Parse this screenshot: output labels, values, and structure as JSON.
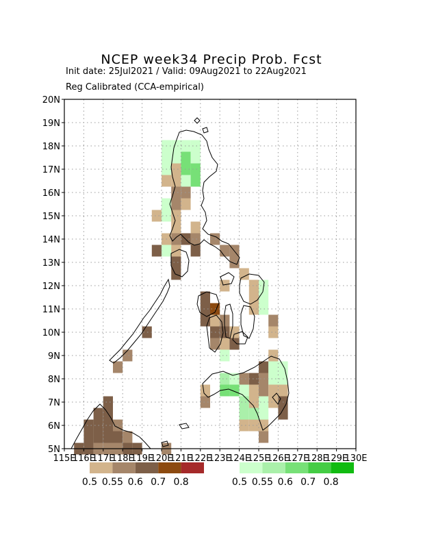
{
  "title": "NCEP week34 Precip Prob. Fcst",
  "subtitle_dates": "Init date: 25Jul2021 / Valid: 09Aug2021 to 22Aug2021",
  "subtitle_method": "Reg Calibrated (CCA-empirical)",
  "map": {
    "lon_range": [
      115,
      130
    ],
    "lat_range": [
      5,
      20
    ],
    "x_ticks": [
      "115E",
      "116E",
      "117E",
      "118E",
      "119E",
      "120E",
      "121E",
      "122E",
      "123E",
      "124E",
      "125E",
      "126E",
      "127E",
      "128E",
      "129E",
      "130E"
    ],
    "y_ticks": [
      "5N",
      "6N",
      "7N",
      "8N",
      "9N",
      "10N",
      "11N",
      "12N",
      "13N",
      "14N",
      "15N",
      "16N",
      "17N",
      "18N",
      "19N",
      "20N"
    ],
    "grid": true
  },
  "legend": {
    "dry": {
      "labels": [
        "0.5",
        "0.55",
        "0.6",
        "0.7",
        "0.8"
      ],
      "colors": [
        "#d2b48c",
        "#a5866a",
        "#7d5f48",
        "#8c4a10",
        "#a52a2a"
      ]
    },
    "wet": {
      "labels": [
        "0.5",
        "0.55",
        "0.6",
        "0.7",
        "0.8"
      ],
      "colors": [
        "#ccffcc",
        "#aaf0aa",
        "#77e077",
        "#44cc44",
        "#11bb11"
      ]
    },
    "class_colors": {
      "d1": "#d2b48c",
      "d2": "#a5866a",
      "d3": "#7d5f48",
      "d4": "#8c4a10",
      "w1": "#ccffcc",
      "w2": "#aaf0aa",
      "w3": "#77e077"
    }
  },
  "cells": [
    {
      "lon": 120.25,
      "lat": 18,
      "cls": "w1"
    },
    {
      "lon": 120.75,
      "lat": 18,
      "cls": "w1"
    },
    {
      "lon": 121.25,
      "lat": 18,
      "cls": "w1"
    },
    {
      "lon": 121.75,
      "lat": 18,
      "cls": "w1"
    },
    {
      "lon": 120.25,
      "lat": 17.5,
      "cls": "w1"
    },
    {
      "lon": 120.75,
      "lat": 17.5,
      "cls": "w1"
    },
    {
      "lon": 121.25,
      "lat": 17.5,
      "cls": "w3"
    },
    {
      "lon": 121.75,
      "lat": 17.5,
      "cls": "w1"
    },
    {
      "lon": 120.25,
      "lat": 17,
      "cls": "w1"
    },
    {
      "lon": 120.75,
      "lat": 17,
      "cls": "d1"
    },
    {
      "lon": 121.25,
      "lat": 17,
      "cls": "w3"
    },
    {
      "lon": 121.75,
      "lat": 17,
      "cls": "w3"
    },
    {
      "lon": 120.25,
      "lat": 16.5,
      "cls": "d1"
    },
    {
      "lon": 120.75,
      "lat": 16.5,
      "cls": "d1"
    },
    {
      "lon": 121.25,
      "lat": 16.5,
      "cls": "w1"
    },
    {
      "lon": 121.75,
      "lat": 16.5,
      "cls": "w3"
    },
    {
      "lon": 120.75,
      "lat": 16,
      "cls": "d2"
    },
    {
      "lon": 121.25,
      "lat": 16,
      "cls": "d2"
    },
    {
      "lon": 120.25,
      "lat": 15.5,
      "cls": "w1"
    },
    {
      "lon": 120.75,
      "lat": 15.5,
      "cls": "d2"
    },
    {
      "lon": 121.25,
      "lat": 15.5,
      "cls": "d1"
    },
    {
      "lon": 119.75,
      "lat": 15,
      "cls": "d1"
    },
    {
      "lon": 120.25,
      "lat": 15,
      "cls": "w1"
    },
    {
      "lon": 120.75,
      "lat": 15,
      "cls": "d1"
    },
    {
      "lon": 120.75,
      "lat": 14.5,
      "cls": "d1"
    },
    {
      "lon": 121.75,
      "lat": 14.5,
      "cls": "d1"
    },
    {
      "lon": 120.25,
      "lat": 14,
      "cls": "d1"
    },
    {
      "lon": 120.75,
      "lat": 14,
      "cls": "d2"
    },
    {
      "lon": 121.25,
      "lat": 14,
      "cls": "d3"
    },
    {
      "lon": 121.75,
      "lat": 14,
      "cls": "d2"
    },
    {
      "lon": 122.75,
      "lat": 14,
      "cls": "d2"
    },
    {
      "lon": 119.75,
      "lat": 13.5,
      "cls": "d3"
    },
    {
      "lon": 120.25,
      "lat": 13.5,
      "cls": "w1"
    },
    {
      "lon": 120.75,
      "lat": 13.5,
      "cls": "d1"
    },
    {
      "lon": 121.75,
      "lat": 13.5,
      "cls": "d3"
    },
    {
      "lon": 123.25,
      "lat": 13.5,
      "cls": "d2"
    },
    {
      "lon": 123.75,
      "lat": 13.5,
      "cls": "d2"
    },
    {
      "lon": 120.75,
      "lat": 13,
      "cls": "d3"
    },
    {
      "lon": 123.75,
      "lat": 13,
      "cls": "d2"
    },
    {
      "lon": 120.75,
      "lat": 12.5,
      "cls": "d3"
    },
    {
      "lon": 124.25,
      "lat": 12.5,
      "cls": "d1"
    },
    {
      "lon": 123.25,
      "lat": 12,
      "cls": "d1"
    },
    {
      "lon": 124.75,
      "lat": 12,
      "cls": "d1"
    },
    {
      "lon": 125.25,
      "lat": 12,
      "cls": "w1"
    },
    {
      "lon": 122.25,
      "lat": 11.5,
      "cls": "d3"
    },
    {
      "lon": 124.75,
      "lat": 11.5,
      "cls": "d1"
    },
    {
      "lon": 125.25,
      "lat": 11.5,
      "cls": "w1"
    },
    {
      "lon": 122.25,
      "lat": 11,
      "cls": "d3"
    },
    {
      "lon": 122.75,
      "lat": 11,
      "cls": "d4"
    },
    {
      "lon": 124.75,
      "lat": 11,
      "cls": "d1"
    },
    {
      "lon": 125.25,
      "lat": 11,
      "cls": "w1"
    },
    {
      "lon": 122.25,
      "lat": 10.5,
      "cls": "d3"
    },
    {
      "lon": 122.75,
      "lat": 10.5,
      "cls": "d1"
    },
    {
      "lon": 123.25,
      "lat": 10.5,
      "cls": "d2"
    },
    {
      "lon": 125.75,
      "lat": 10.5,
      "cls": "d2"
    },
    {
      "lon": 119.25,
      "lat": 10,
      "cls": "d3"
    },
    {
      "lon": 122.75,
      "lat": 10,
      "cls": "d3"
    },
    {
      "lon": 123.25,
      "lat": 10,
      "cls": "d3"
    },
    {
      "lon": 123.75,
      "lat": 10,
      "cls": "d1"
    },
    {
      "lon": 125.75,
      "lat": 10,
      "cls": "d1"
    },
    {
      "lon": 122.75,
      "lat": 9.5,
      "cls": "d2"
    },
    {
      "lon": 123.25,
      "lat": 9.5,
      "cls": "d1"
    },
    {
      "lon": 123.75,
      "lat": 9.5,
      "cls": "d3"
    },
    {
      "lon": 118.25,
      "lat": 9,
      "cls": "d2"
    },
    {
      "lon": 123.25,
      "lat": 9,
      "cls": "w1"
    },
    {
      "lon": 125.75,
      "lat": 9,
      "cls": "d1"
    },
    {
      "lon": 117.75,
      "lat": 8.5,
      "cls": "d2"
    },
    {
      "lon": 125.25,
      "lat": 8.5,
      "cls": "d3"
    },
    {
      "lon": 125.75,
      "lat": 8.5,
      "cls": "w1"
    },
    {
      "lon": 126.25,
      "lat": 8.5,
      "cls": "w1"
    },
    {
      "lon": 123.25,
      "lat": 8,
      "cls": "w2"
    },
    {
      "lon": 123.75,
      "lat": 8,
      "cls": "w1"
    },
    {
      "lon": 124.25,
      "lat": 8,
      "cls": "d2"
    },
    {
      "lon": 124.75,
      "lat": 8,
      "cls": "d3"
    },
    {
      "lon": 125.25,
      "lat": 8,
      "cls": "d2"
    },
    {
      "lon": 125.75,
      "lat": 8,
      "cls": "w1"
    },
    {
      "lon": 126.25,
      "lat": 8,
      "cls": "w1"
    },
    {
      "lon": 122.25,
      "lat": 7.5,
      "cls": "d1"
    },
    {
      "lon": 123.25,
      "lat": 7.5,
      "cls": "w3"
    },
    {
      "lon": 123.75,
      "lat": 7.5,
      "cls": "w3"
    },
    {
      "lon": 124.25,
      "lat": 7.5,
      "cls": "w1"
    },
    {
      "lon": 124.75,
      "lat": 7.5,
      "cls": "d1"
    },
    {
      "lon": 125.25,
      "lat": 7.5,
      "cls": "d2"
    },
    {
      "lon": 125.75,
      "lat": 7.5,
      "cls": "d1"
    },
    {
      "lon": 126.25,
      "lat": 7.5,
      "cls": "d1"
    },
    {
      "lon": 122.25,
      "lat": 7,
      "cls": "d2"
    },
    {
      "lon": 124.25,
      "lat": 7,
      "cls": "w2"
    },
    {
      "lon": 124.75,
      "lat": 7,
      "cls": "d1"
    },
    {
      "lon": 125.25,
      "lat": 7,
      "cls": "w1"
    },
    {
      "lon": 125.75,
      "lat": 7,
      "cls": "d1"
    },
    {
      "lon": 126.25,
      "lat": 7,
      "cls": "d3"
    },
    {
      "lon": 124.25,
      "lat": 6.5,
      "cls": "w2"
    },
    {
      "lon": 124.75,
      "lat": 6.5,
      "cls": "w2"
    },
    {
      "lon": 125.25,
      "lat": 6.5,
      "cls": "w1"
    },
    {
      "lon": 126.25,
      "lat": 6.5,
      "cls": "d3"
    },
    {
      "lon": 124.25,
      "lat": 6,
      "cls": "d1"
    },
    {
      "lon": 124.75,
      "lat": 6,
      "cls": "d1"
    },
    {
      "lon": 125.25,
      "lat": 6,
      "cls": "d1"
    },
    {
      "lon": 125.25,
      "lat": 5.5,
      "cls": "d2"
    },
    {
      "lon": 117.25,
      "lat": 7,
      "cls": "d3"
    },
    {
      "lon": 116.75,
      "lat": 6.5,
      "cls": "d3"
    },
    {
      "lon": 117.25,
      "lat": 6.5,
      "cls": "d3"
    },
    {
      "lon": 116.25,
      "lat": 6,
      "cls": "d3"
    },
    {
      "lon": 116.75,
      "lat": 6,
      "cls": "d3"
    },
    {
      "lon": 117.25,
      "lat": 6,
      "cls": "d3"
    },
    {
      "lon": 117.75,
      "lat": 6,
      "cls": "d2"
    },
    {
      "lon": 116.25,
      "lat": 5.5,
      "cls": "d3"
    },
    {
      "lon": 116.75,
      "lat": 5.5,
      "cls": "d3"
    },
    {
      "lon": 117.25,
      "lat": 5.5,
      "cls": "d3"
    },
    {
      "lon": 117.75,
      "lat": 5.5,
      "cls": "d3"
    },
    {
      "lon": 118.25,
      "lat": 5.5,
      "cls": "d2"
    },
    {
      "lon": 115.75,
      "lat": 5,
      "cls": "d3"
    },
    {
      "lon": 116.25,
      "lat": 5,
      "cls": "d3"
    },
    {
      "lon": 116.75,
      "lat": 5,
      "cls": "d2"
    },
    {
      "lon": 117.25,
      "lat": 5,
      "cls": "d2"
    },
    {
      "lon": 117.75,
      "lat": 5,
      "cls": "d2"
    },
    {
      "lon": 118.25,
      "lat": 5,
      "cls": "d3"
    },
    {
      "lon": 118.75,
      "lat": 5,
      "cls": "d3"
    },
    {
      "lon": 120.25,
      "lat": 5,
      "cls": "d2"
    }
  ]
}
